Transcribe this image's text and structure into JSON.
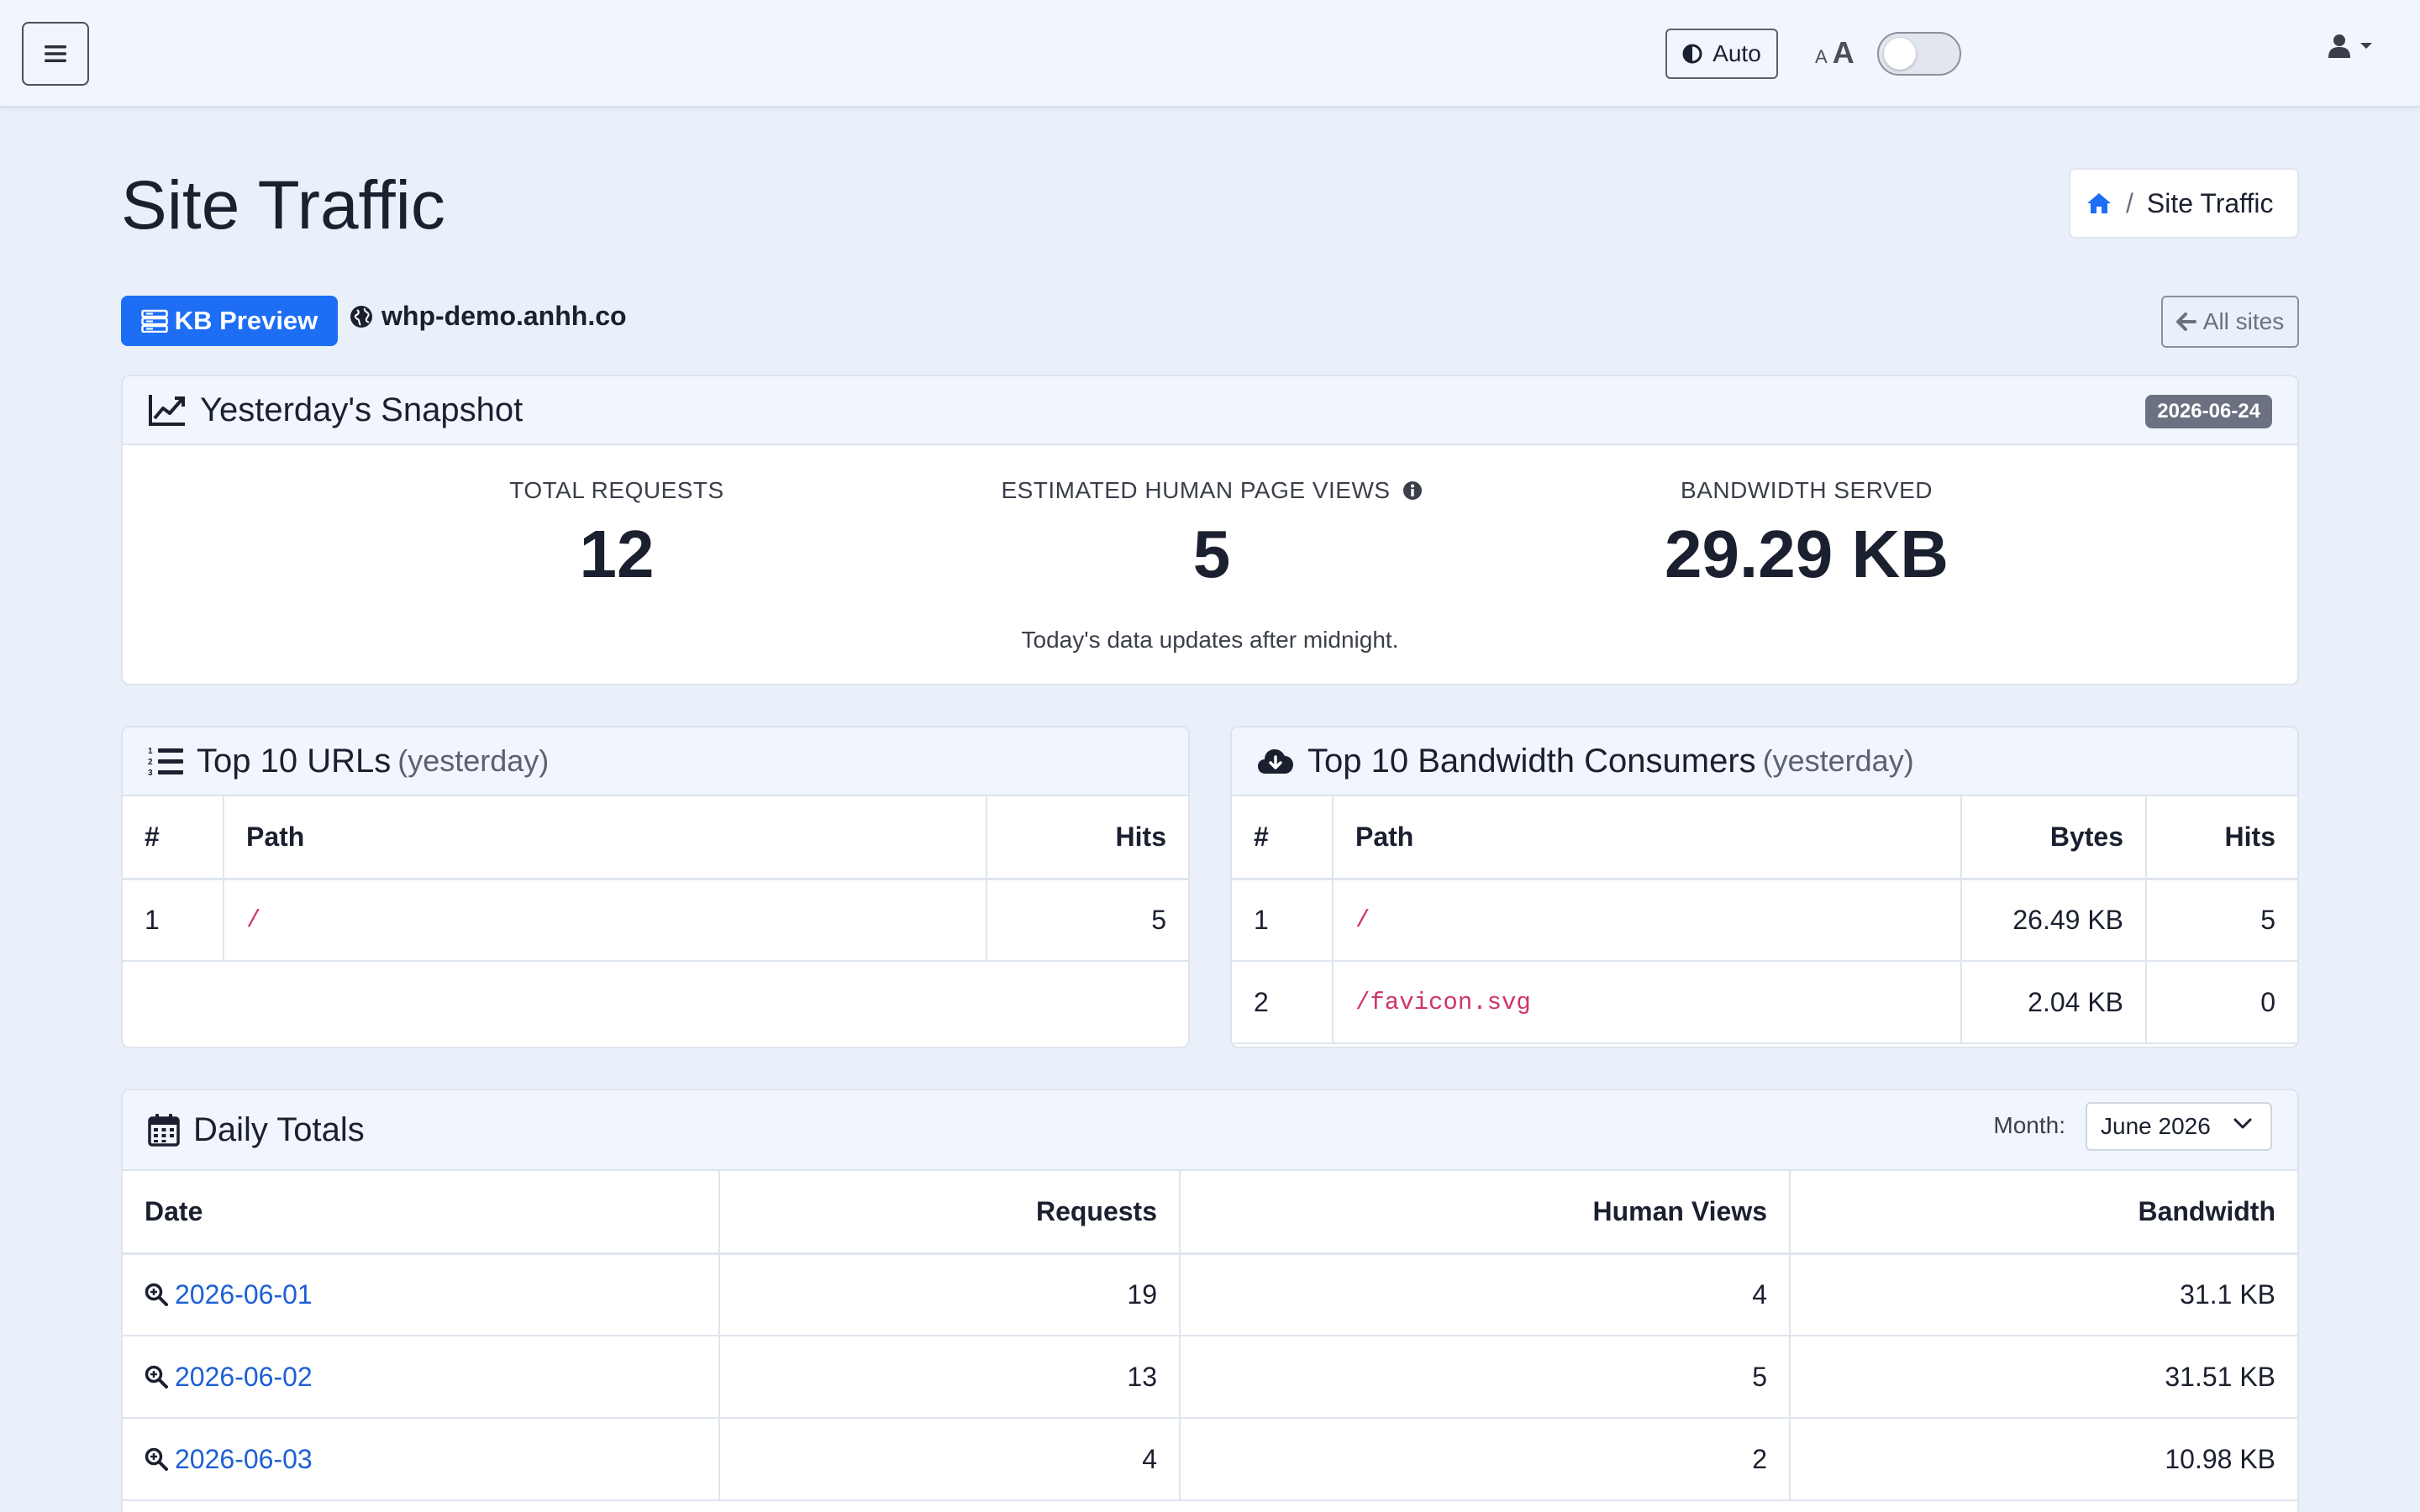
{
  "navbar": {
    "theme_label": "Auto",
    "font_small": "A",
    "font_large": "A"
  },
  "page": {
    "title": "Site Traffic",
    "breadcrumb_current": "Site Traffic",
    "kb_badge": "KB Preview",
    "host": "whp-demo.anhh.co",
    "all_sites": "All sites"
  },
  "snapshot": {
    "title": "Yesterday's Snapshot",
    "date": "2026-06-24",
    "stats": [
      {
        "label": "TOTAL REQUESTS",
        "value": "12"
      },
      {
        "label": "ESTIMATED HUMAN PAGE VIEWS",
        "value": "5"
      },
      {
        "label": "BANDWIDTH SERVED",
        "value": "29.29 KB"
      }
    ],
    "note": "Today's data updates after midnight."
  },
  "top_urls": {
    "title": "Top 10 URLs",
    "subtitle": "(yesterday)",
    "headers": [
      "#",
      "Path",
      "Hits"
    ],
    "rows": [
      {
        "rank": "1",
        "path": "/",
        "hits": "5"
      }
    ]
  },
  "top_bandwidth": {
    "title": "Top 10 Bandwidth Consumers",
    "subtitle": "(yesterday)",
    "headers": [
      "#",
      "Path",
      "Bytes",
      "Hits"
    ],
    "rows": [
      {
        "rank": "1",
        "path": "/",
        "bytes": "26.49 KB",
        "hits": "5"
      },
      {
        "rank": "2",
        "path": "/favicon.svg",
        "bytes": "2.04 KB",
        "hits": "0"
      }
    ]
  },
  "daily": {
    "title": "Daily Totals",
    "month_label": "Month:",
    "month_value": "June 2026",
    "headers": [
      "Date",
      "Requests",
      "Human Views",
      "Bandwidth"
    ],
    "rows": [
      {
        "date": "2026-06-01",
        "requests": "19",
        "views": "4",
        "bandwidth": "31.1 KB"
      },
      {
        "date": "2026-06-02",
        "requests": "13",
        "views": "5",
        "bandwidth": "31.51 KB"
      },
      {
        "date": "2026-06-03",
        "requests": "4",
        "views": "2",
        "bandwidth": "10.98 KB"
      }
    ]
  },
  "colors": {
    "primary": "#1d6ef5",
    "page_bg": "#eaf0f9",
    "code": "#d0336b",
    "link": "#1d5fd6"
  }
}
